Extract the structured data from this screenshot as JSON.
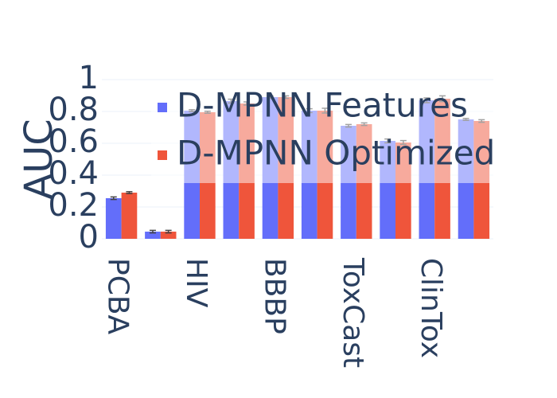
{
  "chart_data": {
    "type": "bar",
    "y_label": "AUC",
    "categories": [
      "PCBA",
      null,
      "HIV",
      null,
      "BBBP",
      null,
      "ToxCast",
      null,
      "ClinTox",
      null
    ],
    "series": [
      {
        "name": "D-MPNN Features",
        "color": "#636efa",
        "values": [
          0.255,
          0.045,
          0.805,
          0.865,
          0.89,
          0.805,
          0.71,
          0.615,
          0.87,
          0.75
        ],
        "errors": [
          0.008,
          0.008,
          0.006,
          0.012,
          0.008,
          0.012,
          0.008,
          0.012,
          0.015,
          0.006
        ]
      },
      {
        "name": "D-MPNN Optimized",
        "color": "#EF553B",
        "values": [
          0.29,
          0.045,
          0.795,
          0.85,
          0.89,
          0.805,
          0.72,
          0.605,
          0.88,
          0.74
        ],
        "errors": [
          0.006,
          0.008,
          0.006,
          0.01,
          0.008,
          0.015,
          0.008,
          0.012,
          0.018,
          0.008
        ]
      }
    ],
    "ylim": [
      0,
      1
    ],
    "yticks": [
      0,
      0.2,
      0.4,
      0.6,
      0.8,
      1
    ],
    "grid": true,
    "legend": "top-right"
  }
}
